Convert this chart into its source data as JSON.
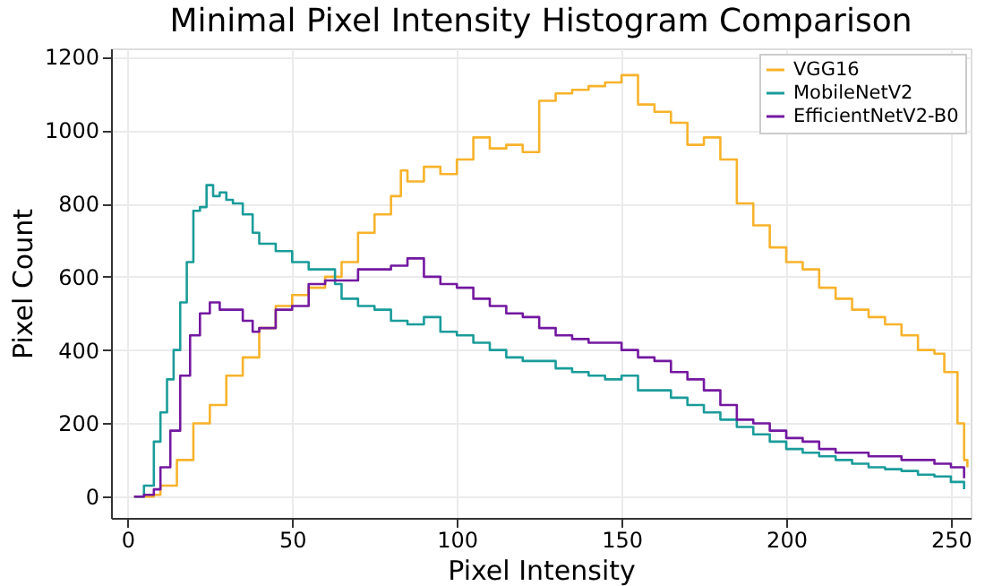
{
  "chart_data": {
    "type": "step",
    "title": "Minimal Pixel Intensity Histogram Comparison",
    "xlabel": "Pixel Intensity",
    "ylabel": "Pixel Count",
    "xlim": [
      -5,
      256
    ],
    "ylim": [
      -58,
      1223
    ],
    "xticks": [
      0,
      50,
      100,
      150,
      200,
      250
    ],
    "yticks": [
      0,
      200,
      400,
      600,
      800,
      1000,
      1200
    ],
    "grid": true,
    "legend": "top right",
    "line_style": "solid",
    "marker": "none",
    "series": [
      {
        "name": "VGG16",
        "color": "#f7b32b",
        "x": [
          2,
          8,
          10,
          15,
          20,
          25,
          30,
          35,
          40,
          45,
          50,
          55,
          60,
          65,
          70,
          75,
          80,
          83,
          85,
          90,
          95,
          100,
          105,
          110,
          115,
          120,
          125,
          130,
          135,
          140,
          145,
          150,
          155,
          160,
          165,
          170,
          175,
          180,
          185,
          190,
          195,
          200,
          205,
          210,
          215,
          220,
          225,
          230,
          235,
          240,
          245,
          248,
          252,
          254,
          255
        ],
        "values": [
          0,
          5,
          30,
          100,
          200,
          250,
          330,
          380,
          460,
          520,
          550,
          570,
          600,
          640,
          720,
          770,
          820,
          890,
          860,
          900,
          880,
          920,
          980,
          950,
          960,
          940,
          1080,
          1100,
          1110,
          1120,
          1130,
          1150,
          1070,
          1050,
          1020,
          960,
          980,
          920,
          800,
          740,
          680,
          640,
          620,
          570,
          540,
          510,
          490,
          470,
          440,
          400,
          390,
          340,
          200,
          100,
          80
        ]
      },
      {
        "name": "MobileNetV2",
        "color": "#1a9c9a",
        "x": [
          2,
          5,
          8,
          10,
          12,
          14,
          16,
          18,
          20,
          22,
          24,
          26,
          28,
          30,
          32,
          35,
          38,
          40,
          45,
          50,
          55,
          60,
          63,
          65,
          70,
          75,
          80,
          85,
          90,
          95,
          100,
          105,
          110,
          115,
          120,
          125,
          130,
          135,
          140,
          145,
          150,
          155,
          160,
          165,
          170,
          175,
          180,
          185,
          190,
          195,
          200,
          205,
          210,
          215,
          220,
          225,
          230,
          235,
          240,
          245,
          250,
          254
        ],
        "values": [
          0,
          30,
          150,
          230,
          320,
          400,
          530,
          640,
          780,
          790,
          850,
          820,
          830,
          810,
          800,
          770,
          720,
          690,
          670,
          640,
          620,
          620,
          580,
          540,
          520,
          510,
          480,
          470,
          490,
          450,
          440,
          420,
          400,
          380,
          370,
          370,
          350,
          340,
          330,
          320,
          330,
          290,
          290,
          270,
          250,
          230,
          210,
          190,
          170,
          150,
          130,
          120,
          110,
          100,
          90,
          80,
          75,
          70,
          60,
          55,
          40,
          20
        ]
      },
      {
        "name": "EfficientNetV2-B0",
        "color": "#7318a0",
        "x": [
          2,
          5,
          8,
          10,
          13,
          16,
          19,
          22,
          25,
          28,
          30,
          35,
          38,
          40,
          45,
          50,
          55,
          60,
          65,
          70,
          75,
          80,
          85,
          90,
          95,
          100,
          105,
          110,
          115,
          120,
          125,
          130,
          135,
          140,
          145,
          150,
          155,
          160,
          165,
          170,
          175,
          180,
          185,
          190,
          195,
          200,
          205,
          210,
          215,
          220,
          225,
          230,
          235,
          240,
          245,
          250,
          254
        ],
        "values": [
          0,
          5,
          20,
          80,
          180,
          330,
          440,
          500,
          530,
          510,
          510,
          480,
          450,
          460,
          510,
          520,
          580,
          590,
          590,
          620,
          620,
          630,
          650,
          600,
          580,
          570,
          540,
          520,
          500,
          490,
          460,
          440,
          430,
          420,
          420,
          400,
          380,
          370,
          340,
          320,
          290,
          250,
          210,
          200,
          180,
          160,
          150,
          130,
          120,
          120,
          110,
          110,
          100,
          100,
          90,
          80,
          50
        ]
      }
    ]
  }
}
